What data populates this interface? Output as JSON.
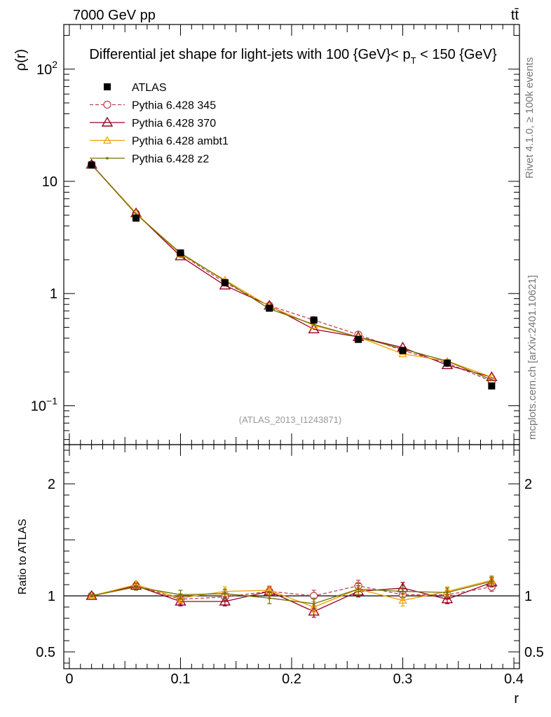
{
  "header": {
    "energy": "7000 GeV pp",
    "process": "tt̄",
    "side_right_top": "Rivet 4.1.0, ≥ 100k events",
    "side_right_bottom": "mcplots.cern.ch [arXiv:2401.10621]",
    "analysis_id": "(ATLAS_2013_I1243871)"
  },
  "colors": {
    "atlas": "#000000",
    "p345": "#bb4455",
    "p370": "#990022",
    "ambt1": "#f0a000",
    "z2": "#707000",
    "axis": "#000000"
  },
  "chart_data": [
    {
      "type": "line",
      "panel": "main",
      "title": "Differential jet shape for light-jets with 100 {GeV}< p_T < 150 {GeV}",
      "title_parts": {
        "main": "Differential jet shape for light-jets with 100 {GeV}< p",
        "sub": "T",
        "tail": " < 150 {GeV}"
      },
      "ylabel": "ρ(r)",
      "xlabel": "",
      "yscale": "log",
      "ylim": [
        0.045,
        250
      ],
      "xlim": [
        -0.005,
        0.405
      ],
      "yticks": [
        {
          "value": 0.1,
          "base": "10",
          "exp": "−1"
        },
        {
          "value": 1,
          "label": "1"
        },
        {
          "value": 10,
          "label": "10"
        },
        {
          "value": 100,
          "base": "10",
          "exp": "2"
        }
      ],
      "x": [
        0.02,
        0.06,
        0.1,
        0.14,
        0.18,
        0.22,
        0.26,
        0.3,
        0.34,
        0.38
      ],
      "series": [
        {
          "name": "ATLAS",
          "key": "atlas",
          "marker": "square",
          "values": [
            14.0,
            4.7,
            2.3,
            1.25,
            0.74,
            0.58,
            0.39,
            0.31,
            0.24,
            0.15
          ]
        },
        {
          "name": "Pythia 6.428 345",
          "key": "p345",
          "marker": "circle",
          "dash": true,
          "values": [
            14.1,
            5.15,
            2.25,
            1.25,
            0.78,
            0.58,
            0.43,
            0.31,
            0.24,
            0.165
          ]
        },
        {
          "name": "Pythia 6.428 370",
          "key": "p370",
          "marker": "triangle",
          "values": [
            14.1,
            5.2,
            2.15,
            1.18,
            0.78,
            0.48,
            0.41,
            0.33,
            0.23,
            0.18
          ]
        },
        {
          "name": "Pythia 6.428 ambt1",
          "key": "ambt1",
          "marker": "triangle-small",
          "values": [
            14.0,
            5.2,
            2.25,
            1.32,
            0.77,
            0.52,
            0.41,
            0.29,
            0.25,
            0.18
          ]
        },
        {
          "name": "Pythia 6.428 z2",
          "key": "z2",
          "marker": "dot",
          "values": [
            14.1,
            5.1,
            2.3,
            1.3,
            0.73,
            0.53,
            0.41,
            0.32,
            0.25,
            0.17
          ]
        }
      ]
    },
    {
      "type": "line",
      "panel": "ratio",
      "title": "",
      "ylabel": "Ratio to ATLAS",
      "xlabel": "r",
      "ylim": [
        0.35,
        2.35
      ],
      "xlim": [
        -0.005,
        0.405
      ],
      "yticks": [
        0.5,
        1,
        2
      ],
      "xticks": [
        0,
        0.1,
        0.2,
        0.3,
        0.4
      ],
      "xticklabels": [
        "0",
        "0.1",
        "0.2",
        "0.3",
        "0.4"
      ],
      "x": [
        0.02,
        0.06,
        0.1,
        0.14,
        0.18,
        0.22,
        0.26,
        0.3,
        0.34,
        0.38
      ],
      "series": [
        {
          "name": "Pythia 6.428 345",
          "key": "p345",
          "marker": "circle",
          "dash": true,
          "values": [
            1.0,
            1.09,
            0.97,
            0.99,
            1.04,
            1.0,
            1.09,
            1.01,
            1.01,
            1.08
          ],
          "errors": [
            0.01,
            0.03,
            0.04,
            0.04,
            0.04,
            0.05,
            0.05,
            0.05,
            0.04,
            0.04
          ]
        },
        {
          "name": "Pythia 6.428 370",
          "key": "p370",
          "marker": "triangle",
          "values": [
            1.0,
            1.09,
            0.95,
            0.95,
            1.04,
            0.86,
            1.04,
            1.07,
            0.97,
            1.12
          ],
          "errors": [
            0.01,
            0.03,
            0.04,
            0.04,
            0.04,
            0.05,
            0.05,
            0.05,
            0.04,
            0.04
          ]
        },
        {
          "name": "Pythia 6.428 ambt1",
          "key": "ambt1",
          "marker": "triangle-small",
          "values": [
            1.0,
            1.1,
            0.98,
            1.04,
            1.05,
            0.9,
            1.06,
            0.96,
            1.04,
            1.14
          ],
          "errors": [
            0.01,
            0.03,
            0.04,
            0.04,
            0.04,
            0.05,
            0.05,
            0.05,
            0.04,
            0.04
          ]
        },
        {
          "name": "Pythia 6.428 z2",
          "key": "z2",
          "marker": "dot",
          "values": [
            1.0,
            1.08,
            1.01,
            1.02,
            0.98,
            0.93,
            1.06,
            1.04,
            1.03,
            1.13
          ],
          "errors": [
            0.01,
            0.03,
            0.04,
            0.04,
            0.05,
            0.05,
            0.05,
            0.05,
            0.04,
            0.04
          ]
        }
      ]
    }
  ]
}
